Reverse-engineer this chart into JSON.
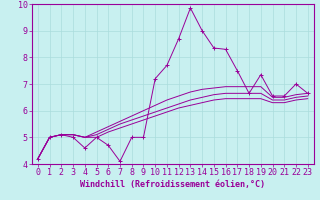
{
  "xlabel": "Windchill (Refroidissement éolien,°C)",
  "xlim": [
    -0.5,
    23.5
  ],
  "ylim": [
    4,
    10
  ],
  "yticks": [
    4,
    5,
    6,
    7,
    8,
    9,
    10
  ],
  "xticks": [
    0,
    1,
    2,
    3,
    4,
    5,
    6,
    7,
    8,
    9,
    10,
    11,
    12,
    13,
    14,
    15,
    16,
    17,
    18,
    19,
    20,
    21,
    22,
    23
  ],
  "background_color": "#c8f0f0",
  "line_color": "#990099",
  "grid_color": "#aadddd",
  "lines": [
    [
      4.2,
      5.0,
      5.1,
      5.0,
      4.6,
      5.0,
      4.7,
      4.1,
      5.0,
      5.0,
      7.2,
      7.7,
      8.7,
      9.85,
      9.0,
      8.35,
      8.3,
      7.5,
      6.65,
      7.35,
      6.55,
      6.55,
      7.0,
      6.65
    ],
    [
      4.2,
      5.0,
      5.1,
      5.1,
      5.0,
      5.2,
      5.4,
      5.6,
      5.8,
      6.0,
      6.2,
      6.4,
      6.55,
      6.7,
      6.8,
      6.85,
      6.9,
      6.9,
      6.9,
      6.9,
      6.5,
      6.5,
      6.6,
      6.65
    ],
    [
      4.2,
      5.0,
      5.1,
      5.1,
      5.0,
      5.1,
      5.3,
      5.5,
      5.65,
      5.8,
      5.95,
      6.1,
      6.25,
      6.4,
      6.5,
      6.6,
      6.65,
      6.65,
      6.65,
      6.65,
      6.4,
      6.4,
      6.5,
      6.55
    ],
    [
      4.2,
      5.0,
      5.1,
      5.1,
      5.0,
      5.0,
      5.2,
      5.35,
      5.5,
      5.65,
      5.8,
      5.95,
      6.1,
      6.2,
      6.3,
      6.4,
      6.45,
      6.45,
      6.45,
      6.45,
      6.3,
      6.3,
      6.4,
      6.45
    ]
  ],
  "marker": "+",
  "marker_size": 3,
  "font_size_xlabel": 6,
  "font_size_tick": 6
}
